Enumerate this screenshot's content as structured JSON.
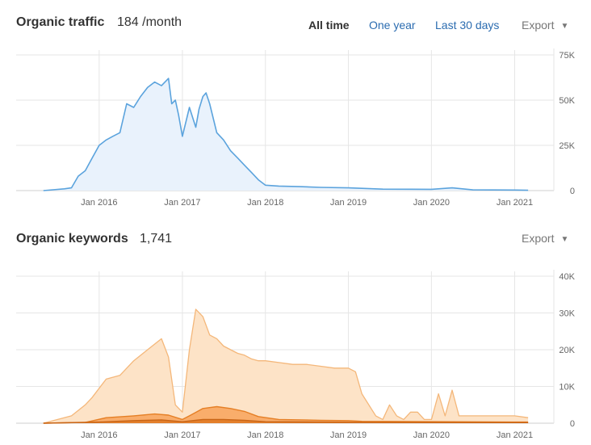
{
  "traffic": {
    "title": "Organic traffic",
    "value": "184 /month",
    "ranges": [
      "All time",
      "One year",
      "Last 30 days"
    ],
    "export_label": "Export"
  },
  "keywords": {
    "title": "Organic keywords",
    "value": "1,741",
    "export_label": "Export"
  },
  "colors": {
    "traffic_line": "#5ba3dd",
    "traffic_fill": "#e9f2fc",
    "kw_top_fill": "#fde3c7",
    "kw_top_line": "#f4b77a",
    "kw_mid_fill": "#f8a35a",
    "kw_mid_line": "#e57f25",
    "kw_low_fill": "#e07a25",
    "kw_low_line": "#c86415",
    "grid": "#e6e6e6"
  },
  "chart_data": [
    {
      "type": "area",
      "title": "Organic traffic",
      "x_tick_labels": [
        "Jan 2016",
        "Jan 2017",
        "Jan 2018",
        "Jan 2019",
        "Jan 2020",
        "Jan 2021"
      ],
      "y_tick_labels": [
        "75K",
        "50K",
        "25K",
        "0"
      ],
      "ylim": [
        0,
        75000
      ],
      "grid": true,
      "series": [
        {
          "x": [
            "2015-05-01",
            "2015-08-01",
            "2015-09-01",
            "2015-10-01",
            "2015-11-01",
            "2015-12-01",
            "2016-01-01",
            "2016-02-01",
            "2016-03-01",
            "2016-04-01",
            "2016-05-01",
            "2016-06-01",
            "2016-07-01",
            "2016-08-01",
            "2016-09-01",
            "2016-10-01",
            "2016-11-01",
            "2016-11-15",
            "2016-12-01",
            "2016-12-15",
            "2017-01-01",
            "2017-02-01",
            "2017-03-01",
            "2017-03-15",
            "2017-04-01",
            "2017-04-15",
            "2017-05-01",
            "2017-06-01",
            "2017-07-01",
            "2017-08-01",
            "2017-09-01",
            "2017-10-01",
            "2017-11-01",
            "2017-12-01",
            "2018-01-01",
            "2018-03-01",
            "2018-06-01",
            "2018-09-01",
            "2019-01-01",
            "2019-06-01",
            "2020-01-01",
            "2020-04-01",
            "2020-07-01",
            "2021-01-01",
            "2021-03-01"
          ],
          "values": [
            0,
            1000,
            1500,
            8000,
            11000,
            18000,
            25000,
            28000,
            30000,
            32000,
            48000,
            46000,
            52000,
            57000,
            60000,
            58000,
            62000,
            48000,
            50000,
            42000,
            30000,
            46000,
            35000,
            45000,
            52000,
            54000,
            48000,
            32000,
            28000,
            22000,
            18000,
            14000,
            10000,
            6000,
            3000,
            2500,
            2200,
            1800,
            1500,
            800,
            700,
            1500,
            400,
            300,
            200
          ]
        }
      ]
    },
    {
      "type": "area",
      "title": "Organic keywords",
      "x_tick_labels": [
        "Jan 2016",
        "Jan 2017",
        "Jan 2018",
        "Jan 2019",
        "Jan 2020",
        "Jan 2021"
      ],
      "y_tick_labels": [
        "40K",
        "30K",
        "20K",
        "10K",
        "0"
      ],
      "ylim": [
        0,
        40000
      ],
      "grid": true,
      "series": [
        {
          "x": [
            "2015-05-01",
            "2015-09-01",
            "2015-11-01",
            "2015-12-01",
            "2016-02-01",
            "2016-04-01",
            "2016-06-01",
            "2016-08-01",
            "2016-10-01",
            "2016-11-01",
            "2016-12-01",
            "2017-01-01",
            "2017-02-01",
            "2017-03-01",
            "2017-04-01",
            "2017-05-01",
            "2017-06-01",
            "2017-07-01",
            "2017-08-01",
            "2017-09-01",
            "2017-10-01",
            "2017-11-01",
            "2017-12-01",
            "2018-01-01",
            "2018-03-01",
            "2018-05-01",
            "2018-07-01",
            "2018-09-01",
            "2018-11-01",
            "2019-01-01",
            "2019-02-01",
            "2019-03-01",
            "2019-05-01",
            "2019-06-01",
            "2019-07-01",
            "2019-08-01",
            "2019-09-01",
            "2019-10-01",
            "2019-11-01",
            "2019-12-01",
            "2020-01-01",
            "2020-02-01",
            "2020-03-01",
            "2020-04-01",
            "2020-05-01",
            "2020-06-01",
            "2020-07-01",
            "2021-01-01",
            "2021-03-01"
          ],
          "values": [
            0,
            2000,
            5000,
            7000,
            12000,
            13000,
            17000,
            20000,
            23000,
            18000,
            5000,
            3000,
            20000,
            31000,
            29000,
            24000,
            23000,
            21000,
            20000,
            19000,
            18500,
            17500,
            17000,
            17000,
            16500,
            16000,
            16000,
            15500,
            15000,
            15000,
            14000,
            8000,
            2000,
            1000,
            5000,
            2000,
            1000,
            3000,
            3000,
            1000,
            1000,
            8000,
            2000,
            9000,
            2000,
            2000,
            2000,
            2000,
            1500
          ]
        },
        {
          "x": [
            "2015-05-01",
            "2015-11-01",
            "2016-02-01",
            "2016-06-01",
            "2016-09-01",
            "2016-11-01",
            "2017-01-01",
            "2017-02-01",
            "2017-04-01",
            "2017-06-01",
            "2017-08-01",
            "2017-10-01",
            "2017-12-01",
            "2018-03-01",
            "2018-09-01",
            "2019-01-01",
            "2019-03-01",
            "2021-03-01"
          ],
          "values": [
            0,
            200,
            1500,
            2000,
            2500,
            2200,
            1000,
            2000,
            4000,
            4500,
            4000,
            3200,
            1800,
            1000,
            800,
            700,
            500,
            300
          ]
        },
        {
          "x": [
            "2015-05-01",
            "2016-01-01",
            "2016-06-01",
            "2016-10-01",
            "2017-01-01",
            "2017-04-01",
            "2017-07-01",
            "2017-10-01",
            "2018-01-01",
            "2018-09-01",
            "2019-06-01",
            "2021-03-01"
          ],
          "values": [
            0,
            300,
            700,
            900,
            400,
            1000,
            1000,
            800,
            400,
            300,
            200,
            150
          ]
        }
      ]
    }
  ]
}
